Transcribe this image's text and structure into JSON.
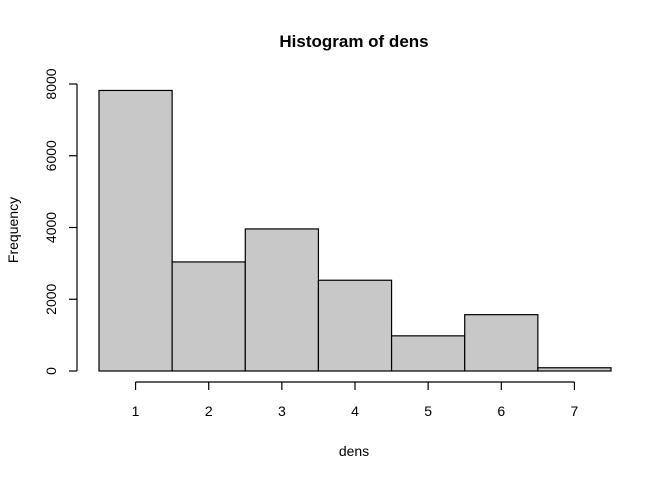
{
  "chart_data": {
    "type": "bar",
    "title": "Histogram of dens",
    "xlabel": "dens",
    "ylabel": "Frequency",
    "categories": [
      "1",
      "2",
      "3",
      "4",
      "5",
      "6",
      "7"
    ],
    "values": [
      7820,
      3040,
      3960,
      2530,
      980,
      1570,
      90
    ],
    "bin_edges": [
      0.5,
      1.5,
      2.5,
      3.5,
      4.5,
      5.5,
      6.5,
      7.5
    ],
    "x_ticks": [
      "1",
      "2",
      "3",
      "4",
      "5",
      "6",
      "7"
    ],
    "y_ticks": [
      "0",
      "2000",
      "4000",
      "6000",
      "8000"
    ],
    "y_tick_values": [
      0,
      2000,
      4000,
      6000,
      8000
    ],
    "xlim": [
      0.5,
      7.5
    ],
    "ylim": [
      0,
      8000
    ],
    "grid": false,
    "bar_color": "#c8c8c8",
    "border_color": "#000000"
  }
}
